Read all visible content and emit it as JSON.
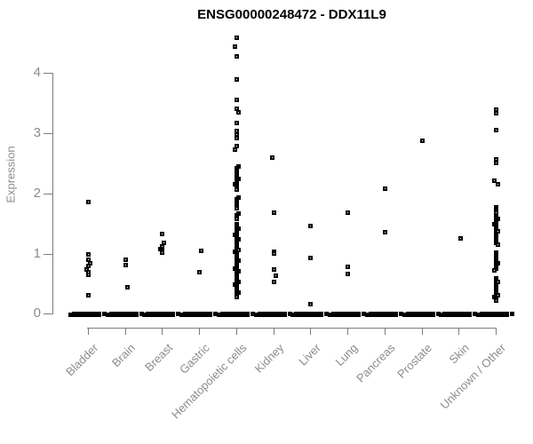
{
  "title": "ENSG00000248472 - DDX11L9",
  "chart_data": {
    "type": "scatter",
    "subtype": "strip-plot",
    "title": "ENSG00000248472 - DDX11L9",
    "xlabel": "",
    "ylabel": "Expression",
    "ylim": [
      0,
      4.7
    ],
    "yticks": [
      0,
      1,
      2,
      3,
      4
    ],
    "grid": false,
    "legend": "none",
    "marker": "open-square",
    "colors": {
      "marker": "#000000",
      "axis": "#7d7d7d",
      "tick_labels": "#8c8c8c",
      "title": "#000000",
      "background": "#ffffff"
    },
    "categories": [
      "Bladder",
      "Brain",
      "Breast",
      "Gastric",
      "Hematopoietic cells",
      "Kidney",
      "Liver",
      "Lung",
      "Pancreas",
      "Prostate",
      "Skin",
      "Unknown / Other"
    ],
    "series": [
      {
        "category": "Bladder",
        "zero_cluster": true,
        "points": [
          1.86,
          1.0,
          0.91,
          0.85,
          0.8,
          0.75,
          0.7,
          0.66,
          0.31
        ],
        "strips": []
      },
      {
        "category": "Brain",
        "zero_cluster": true,
        "points": [
          0.9,
          0.82,
          0.45
        ],
        "strips": []
      },
      {
        "category": "Breast",
        "zero_cluster": true,
        "points": [
          1.34,
          1.19,
          1.13,
          1.08,
          1.05,
          1.02
        ],
        "strips": []
      },
      {
        "category": "Gastric",
        "zero_cluster": true,
        "points": [
          1.06,
          0.7
        ],
        "strips": []
      },
      {
        "category": "Hematopoietic cells",
        "zero_cluster": true,
        "points": [
          4.6,
          4.44,
          4.28,
          3.9,
          3.56,
          3.41,
          3.35,
          3.17,
          3.04,
          2.98,
          2.92,
          2.8,
          2.73
        ],
        "strips": [
          {
            "from": 2.46,
            "to": 2.07,
            "step": 0.03
          },
          {
            "from": 1.94,
            "to": 1.74,
            "step": 0.03
          },
          {
            "from": 1.67,
            "to": 1.57,
            "step": 0.03
          },
          {
            "from": 1.49,
            "to": 0.28,
            "step": 0.025
          }
        ]
      },
      {
        "category": "Kidney",
        "zero_cluster": true,
        "points": [
          2.6,
          1.68,
          1.04,
          1.01,
          0.74,
          0.64,
          0.53
        ],
        "strips": []
      },
      {
        "category": "Liver",
        "zero_cluster": true,
        "points": [
          1.47,
          0.93,
          0.17
        ],
        "strips": []
      },
      {
        "category": "Lung",
        "zero_cluster": true,
        "points": [
          1.68,
          0.79,
          0.67
        ],
        "strips": []
      },
      {
        "category": "Pancreas",
        "zero_cluster": true,
        "points": [
          2.08,
          1.37
        ],
        "strips": []
      },
      {
        "category": "Prostate",
        "zero_cluster": true,
        "points": [
          2.88
        ],
        "strips": []
      },
      {
        "category": "Skin",
        "zero_cluster": true,
        "points": [
          1.26
        ],
        "strips": []
      },
      {
        "category": "Unknown / Other",
        "zero_cluster": true,
        "points": [
          3.4,
          3.34,
          3.06,
          2.57,
          2.51,
          2.22,
          2.16
        ],
        "strips": [
          {
            "from": 1.77,
            "to": 1.37,
            "step": 0.03
          },
          {
            "from": 1.33,
            "to": 1.15,
            "step": 0.03
          },
          {
            "from": 1.03,
            "to": 0.71,
            "step": 0.03
          },
          {
            "from": 0.59,
            "to": 0.22,
            "step": 0.03
          }
        ]
      }
    ]
  }
}
